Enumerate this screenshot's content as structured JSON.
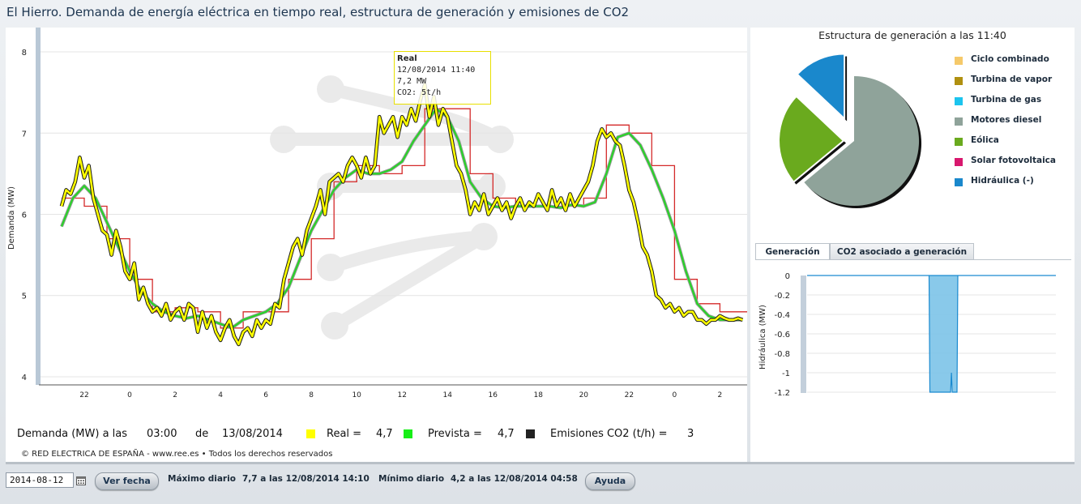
{
  "window": {
    "title": "El Hierro. Demanda de energía eléctrica en tiempo real, estructura de generación y emisiones de CO2"
  },
  "colors": {
    "real": "#ffff00",
    "prevista": "#28d428",
    "programada": "#d42a2a",
    "emisiones": "#222222",
    "pie_border": "#1a1a1a"
  },
  "tooltip": {
    "title": "Real",
    "datetime": "12/08/2014 11:40",
    "value": "7,2  MW",
    "co2": "CO2: 5t/h"
  },
  "summary": {
    "label": "Demanda (MW) a las",
    "time": "03:00",
    "de": "de",
    "date": "13/08/2014",
    "real_label": "Real =",
    "real_value": "4,7",
    "prevista_label": "Prevista =",
    "prevista_value": "4,7",
    "emisiones_label": "Emisiones CO2 (t/h) =",
    "emisiones_value": "3"
  },
  "copyright": "© RED ELECTRICA DE ESPAÑA - www.ree.es • Todos los derechos reservados",
  "bottom_bar": {
    "date_value": "2014-08-12",
    "ver_fecha": "Ver fecha",
    "maximo_label": "Máximo diario",
    "maximo_value": "7,7 a las 12/08/2014 14:10",
    "minimo_label": "Mínimo diario",
    "minimo_value": "4,2 a las 12/08/2014 04:58",
    "ayuda": "Ayuda"
  },
  "pie_panel": {
    "title": "Estructura de generación a las 11:40",
    "legend": [
      {
        "label": "Ciclo combinado",
        "color": "#f5c96a"
      },
      {
        "label": "Turbina de vapor",
        "color": "#b09010"
      },
      {
        "label": "Turbina de gas",
        "color": "#1cc4ee"
      },
      {
        "label": "Motores diesel",
        "color": "#8fa39a"
      },
      {
        "label": "Eólica",
        "color": "#6aaa1e"
      },
      {
        "label": "Solar fotovoltaica",
        "color": "#d8186e"
      },
      {
        "label": "Hidráulica (-)",
        "color": "#1a88cc"
      }
    ]
  },
  "tabs": [
    {
      "label": "Generación",
      "active": true
    },
    {
      "label": "CO2 asociado a generación",
      "active": false
    }
  ],
  "chart_data": [
    {
      "type": "line",
      "ylabel": "Demanda (MW)",
      "xlabel": "",
      "ylim": [
        3.9,
        8.2
      ],
      "yticks": [
        4,
        5,
        6,
        7,
        8
      ],
      "x_tick_labels": [
        "22",
        "0",
        "2",
        "4",
        "6",
        "8",
        "10",
        "12",
        "14",
        "16",
        "18",
        "20",
        "22",
        "0",
        "2"
      ],
      "x_tick_hours": [
        -2,
        0,
        2,
        4,
        6,
        8,
        10,
        12,
        14,
        16,
        18,
        20,
        22,
        24,
        26
      ],
      "x_range_hours": [
        -4,
        27.2
      ],
      "series": [
        {
          "name": "Real",
          "color": "#ffff00",
          "hours": [
            -3.0,
            -2.8,
            -2.6,
            -2.4,
            -2.2,
            -2.0,
            -1.8,
            -1.6,
            -1.4,
            -1.2,
            -1.0,
            -0.8,
            -0.6,
            -0.4,
            -0.2,
            0.0,
            0.2,
            0.4,
            0.6,
            0.8,
            1.0,
            1.2,
            1.4,
            1.6,
            1.8,
            2.0,
            2.2,
            2.4,
            2.6,
            2.8,
            3.0,
            3.2,
            3.4,
            3.6,
            3.8,
            4.0,
            4.2,
            4.4,
            4.6,
            4.8,
            5.0,
            5.2,
            5.4,
            5.6,
            5.8,
            6.0,
            6.2,
            6.4,
            6.6,
            6.8,
            7.0,
            7.2,
            7.4,
            7.6,
            7.8,
            8.0,
            8.2,
            8.4,
            8.6,
            8.8,
            9.0,
            9.2,
            9.4,
            9.6,
            9.8,
            10.0,
            10.2,
            10.4,
            10.6,
            10.8,
            11.0,
            11.2,
            11.4,
            11.6,
            11.8,
            12.0,
            12.2,
            12.4,
            12.6,
            12.8,
            13.0,
            13.2,
            13.4,
            13.6,
            13.8,
            14.0,
            14.2,
            14.4,
            14.6,
            14.8,
            15.0,
            15.2,
            15.4,
            15.6,
            15.8,
            16.0,
            16.2,
            16.4,
            16.6,
            16.8,
            17.0,
            17.2,
            17.4,
            17.6,
            17.8,
            18.0,
            18.2,
            18.4,
            18.6,
            18.8,
            19.0,
            19.2,
            19.4,
            19.6,
            19.8,
            20.0,
            20.2,
            20.4,
            20.6,
            20.8,
            21.0,
            21.2,
            21.4,
            21.6,
            21.8,
            22.0,
            22.2,
            22.4,
            22.6,
            22.8,
            23.0,
            23.2,
            23.4,
            23.6,
            23.8,
            24.0,
            24.2,
            24.4,
            24.6,
            24.8,
            25.0,
            25.2,
            25.4,
            25.6,
            25.8,
            26.0,
            26.2,
            26.4,
            26.6,
            26.8,
            27.0
          ],
          "values": [
            6.1,
            6.3,
            6.25,
            6.4,
            6.7,
            6.45,
            6.6,
            6.2,
            6.0,
            5.8,
            5.75,
            5.5,
            5.8,
            5.6,
            5.3,
            5.2,
            5.4,
            4.95,
            5.1,
            4.9,
            4.8,
            4.85,
            4.75,
            4.9,
            4.7,
            4.8,
            4.85,
            4.7,
            4.9,
            4.85,
            4.55,
            4.8,
            4.6,
            4.75,
            4.55,
            4.45,
            4.6,
            4.7,
            4.5,
            4.4,
            4.55,
            4.6,
            4.5,
            4.7,
            4.6,
            4.7,
            4.65,
            4.9,
            4.85,
            5.2,
            5.4,
            5.6,
            5.7,
            5.5,
            5.8,
            5.95,
            6.1,
            6.3,
            6.0,
            6.4,
            6.45,
            6.5,
            6.4,
            6.6,
            6.7,
            6.6,
            6.45,
            6.7,
            6.5,
            6.6,
            7.2,
            7.0,
            7.1,
            7.2,
            6.95,
            7.2,
            7.1,
            7.3,
            7.15,
            7.4,
            7.6,
            7.2,
            7.45,
            7.1,
            7.3,
            7.2,
            6.9,
            6.6,
            6.5,
            6.3,
            6.0,
            6.15,
            6.05,
            6.25,
            6.0,
            6.1,
            6.2,
            6.05,
            6.15,
            5.95,
            6.1,
            6.2,
            6.05,
            6.15,
            6.1,
            6.25,
            6.15,
            6.05,
            6.3,
            6.1,
            6.2,
            6.05,
            6.25,
            6.1,
            6.2,
            6.3,
            6.4,
            6.6,
            6.9,
            7.05,
            6.95,
            7.0,
            6.9,
            6.85,
            6.6,
            6.3,
            6.15,
            5.9,
            5.6,
            5.5,
            5.3,
            5.0,
            4.95,
            4.85,
            4.9,
            4.8,
            4.85,
            4.75,
            4.8,
            4.8,
            4.7,
            4.7,
            4.65,
            4.7,
            4.7,
            4.75,
            4.72,
            4.7,
            4.7,
            4.72,
            4.7
          ]
        },
        {
          "name": "Prevista",
          "color": "#28d428",
          "hours": [
            -3.0,
            -2.5,
            -2.0,
            -1.5,
            -1.0,
            -0.5,
            0.0,
            0.5,
            1.0,
            1.5,
            2.0,
            2.5,
            3.0,
            3.5,
            4.0,
            4.5,
            5.0,
            5.5,
            6.0,
            6.5,
            7.0,
            7.5,
            8.0,
            8.5,
            9.0,
            9.5,
            10.0,
            10.5,
            11.0,
            11.5,
            12.0,
            12.5,
            13.0,
            13.5,
            14.0,
            14.5,
            15.0,
            15.5,
            16.0,
            16.5,
            17.0,
            17.5,
            18.0,
            18.5,
            19.0,
            19.5,
            20.0,
            20.5,
            21.0,
            21.5,
            22.0,
            22.5,
            23.0,
            23.5,
            24.0,
            24.5,
            25.0,
            25.5,
            26.0,
            26.5,
            27.0
          ],
          "values": [
            5.85,
            6.2,
            6.35,
            6.2,
            5.9,
            5.6,
            5.3,
            5.05,
            4.9,
            4.8,
            4.75,
            4.72,
            4.75,
            4.7,
            4.65,
            4.6,
            4.7,
            4.75,
            4.8,
            4.9,
            5.1,
            5.45,
            5.8,
            6.05,
            6.3,
            6.45,
            6.55,
            6.5,
            6.5,
            6.55,
            6.65,
            6.9,
            7.1,
            7.3,
            7.2,
            6.9,
            6.4,
            6.2,
            6.1,
            6.08,
            6.1,
            6.1,
            6.1,
            6.1,
            6.08,
            6.12,
            6.1,
            6.15,
            6.5,
            6.95,
            7.0,
            6.85,
            6.55,
            6.2,
            5.8,
            5.3,
            4.9,
            4.75,
            4.7,
            4.7,
            4.7
          ]
        },
        {
          "name": "Programada",
          "color": "#d42a2a",
          "step": true,
          "hours": [
            -3.0,
            -2.0,
            -1.0,
            0.0,
            1.0,
            2.0,
            3.0,
            4.0,
            5.0,
            6.0,
            7.0,
            8.0,
            9.0,
            10.0,
            11.0,
            12.0,
            13.0,
            14.0,
            15.0,
            16.0,
            17.0,
            18.0,
            19.0,
            20.0,
            21.0,
            22.0,
            23.0,
            24.0,
            25.0,
            26.0,
            27.0
          ],
          "values": [
            6.2,
            6.1,
            5.7,
            5.2,
            4.8,
            4.85,
            4.8,
            4.6,
            4.8,
            4.8,
            5.2,
            5.7,
            6.4,
            6.6,
            6.5,
            6.6,
            7.3,
            7.3,
            6.5,
            6.2,
            6.1,
            6.1,
            6.1,
            6.2,
            7.1,
            7.0,
            6.6,
            5.2,
            4.9,
            4.8,
            4.8
          ]
        }
      ]
    },
    {
      "type": "pie",
      "title": "Estructura de generación a las 11:40",
      "slices": [
        {
          "label": "Motores diesel",
          "value": 64
        },
        {
          "label": "Eólica",
          "value": 23
        },
        {
          "label": "Hidráulica (-)",
          "value": 13
        }
      ]
    },
    {
      "type": "area",
      "ylabel": "Hidráulica (MW)",
      "ylim": [
        -1.2,
        0
      ],
      "yticks": [
        0,
        -0.2,
        -0.4,
        -0.6,
        -0.8,
        -1,
        -1.2
      ],
      "x_range_hours": [
        -4,
        27.2
      ],
      "series": [
        {
          "name": "Hidráulica",
          "color": "#7cc3e8",
          "hours": [
            -4.0,
            11.3,
            11.4,
            11.5,
            14.0,
            14.1,
            14.2,
            14.3,
            14.7,
            14.8,
            14.9,
            15.0,
            27.2
          ],
          "values": [
            0,
            0,
            -1.2,
            -1.2,
            -1.2,
            -1.0,
            -1.2,
            -1.2,
            -1.2,
            -1.2,
            0,
            0,
            0
          ]
        }
      ]
    }
  ]
}
